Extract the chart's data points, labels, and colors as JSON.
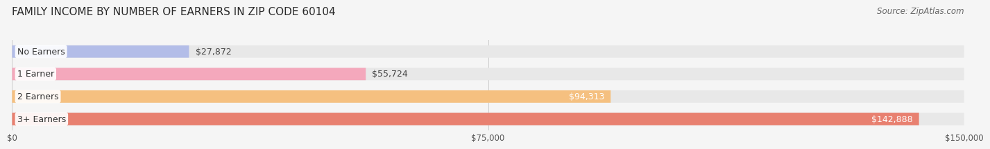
{
  "title": "FAMILY INCOME BY NUMBER OF EARNERS IN ZIP CODE 60104",
  "source": "Source: ZipAtlas.com",
  "categories": [
    "No Earners",
    "1 Earner",
    "2 Earners",
    "3+ Earners"
  ],
  "values": [
    27872,
    55724,
    94313,
    142888
  ],
  "bar_colors": [
    "#b3bde8",
    "#f4a8bc",
    "#f5c080",
    "#e88070"
  ],
  "bar_bg_color": "#e8e8e8",
  "label_colors": [
    "#555555",
    "#555555",
    "#ffffff",
    "#ffffff"
  ],
  "xlim": [
    0,
    150000
  ],
  "xticks": [
    0,
    75000,
    150000
  ],
  "xtick_labels": [
    "$0",
    "$75,000",
    "$150,000"
  ],
  "title_fontsize": 11,
  "source_fontsize": 8.5,
  "bar_label_fontsize": 9,
  "category_label_fontsize": 9,
  "background_color": "#f5f5f5"
}
